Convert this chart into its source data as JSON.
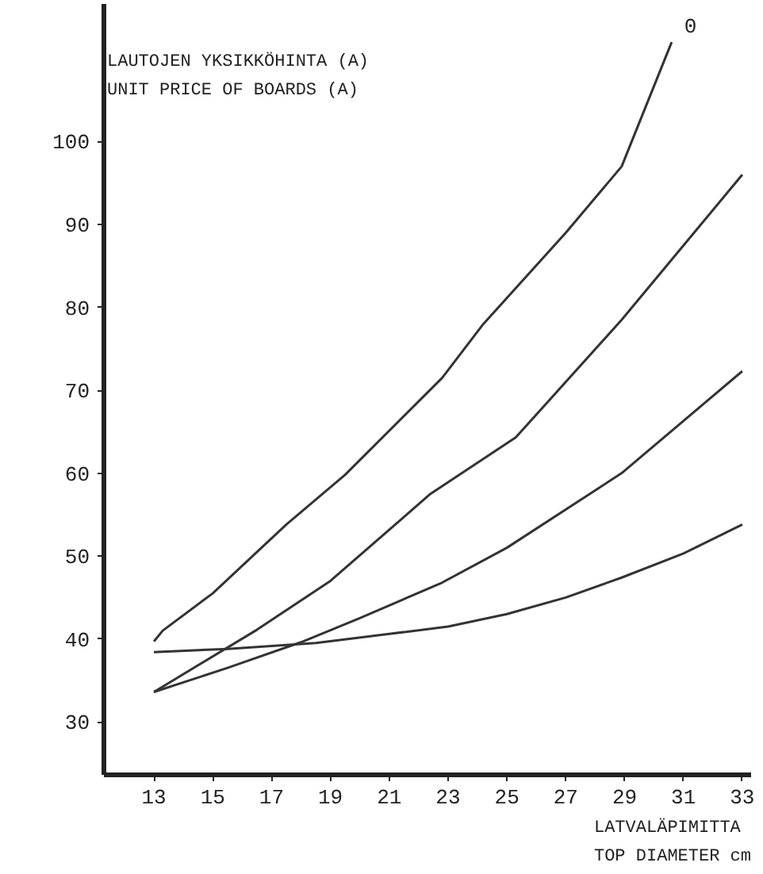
{
  "chart_data": {
    "type": "line",
    "ylabel": "LAUTOJEN YKSIKKÖHINTA (A)\nUNIT PRICE OF BOARDS (A)",
    "xlabel": "LATVALÄPIMITTA\nTOP DIAMETER cm",
    "xlim": [
      11.3,
      33.3
    ],
    "ylim": [
      23.6,
      116.6
    ],
    "xticks": [
      13,
      15,
      17,
      19,
      21,
      23,
      25,
      27,
      29,
      31,
      33
    ],
    "yticks": [
      30,
      40,
      50,
      60,
      70,
      80,
      90,
      100
    ],
    "grid": false,
    "line_style": "solid",
    "series": [
      {
        "color": "#333333",
        "x": [
          13,
          13.3,
          15,
          17.5,
          19.5,
          22.8,
          24.2,
          27,
          28.9,
          30.6
        ],
        "values": [
          39.7,
          41,
          45.5,
          53.8,
          59.8,
          71.5,
          78,
          89,
          97,
          112
        ]
      },
      {
        "color": "#333333",
        "x": [
          13,
          16.5,
          19,
          22.4,
          25.3,
          28.9,
          33
        ],
        "values": [
          33.6,
          41.1,
          47,
          57.5,
          64.3,
          78.5,
          96
        ]
      },
      {
        "color": "#333333",
        "x": [
          13,
          15.5,
          18,
          20,
          22.8,
          25,
          28.9,
          33
        ],
        "values": [
          33.6,
          36.5,
          39.6,
          42.5,
          46.8,
          51,
          60,
          72.3
        ]
      },
      {
        "color": "#333333",
        "x": [
          13,
          15.5,
          18.5,
          21,
          23,
          25,
          27,
          28.9,
          31,
          33
        ],
        "values": [
          38.4,
          38.8,
          39.5,
          40.6,
          41.5,
          43,
          45,
          47.4,
          50.3,
          53.8
        ]
      }
    ],
    "annotations": [
      "0"
    ]
  }
}
